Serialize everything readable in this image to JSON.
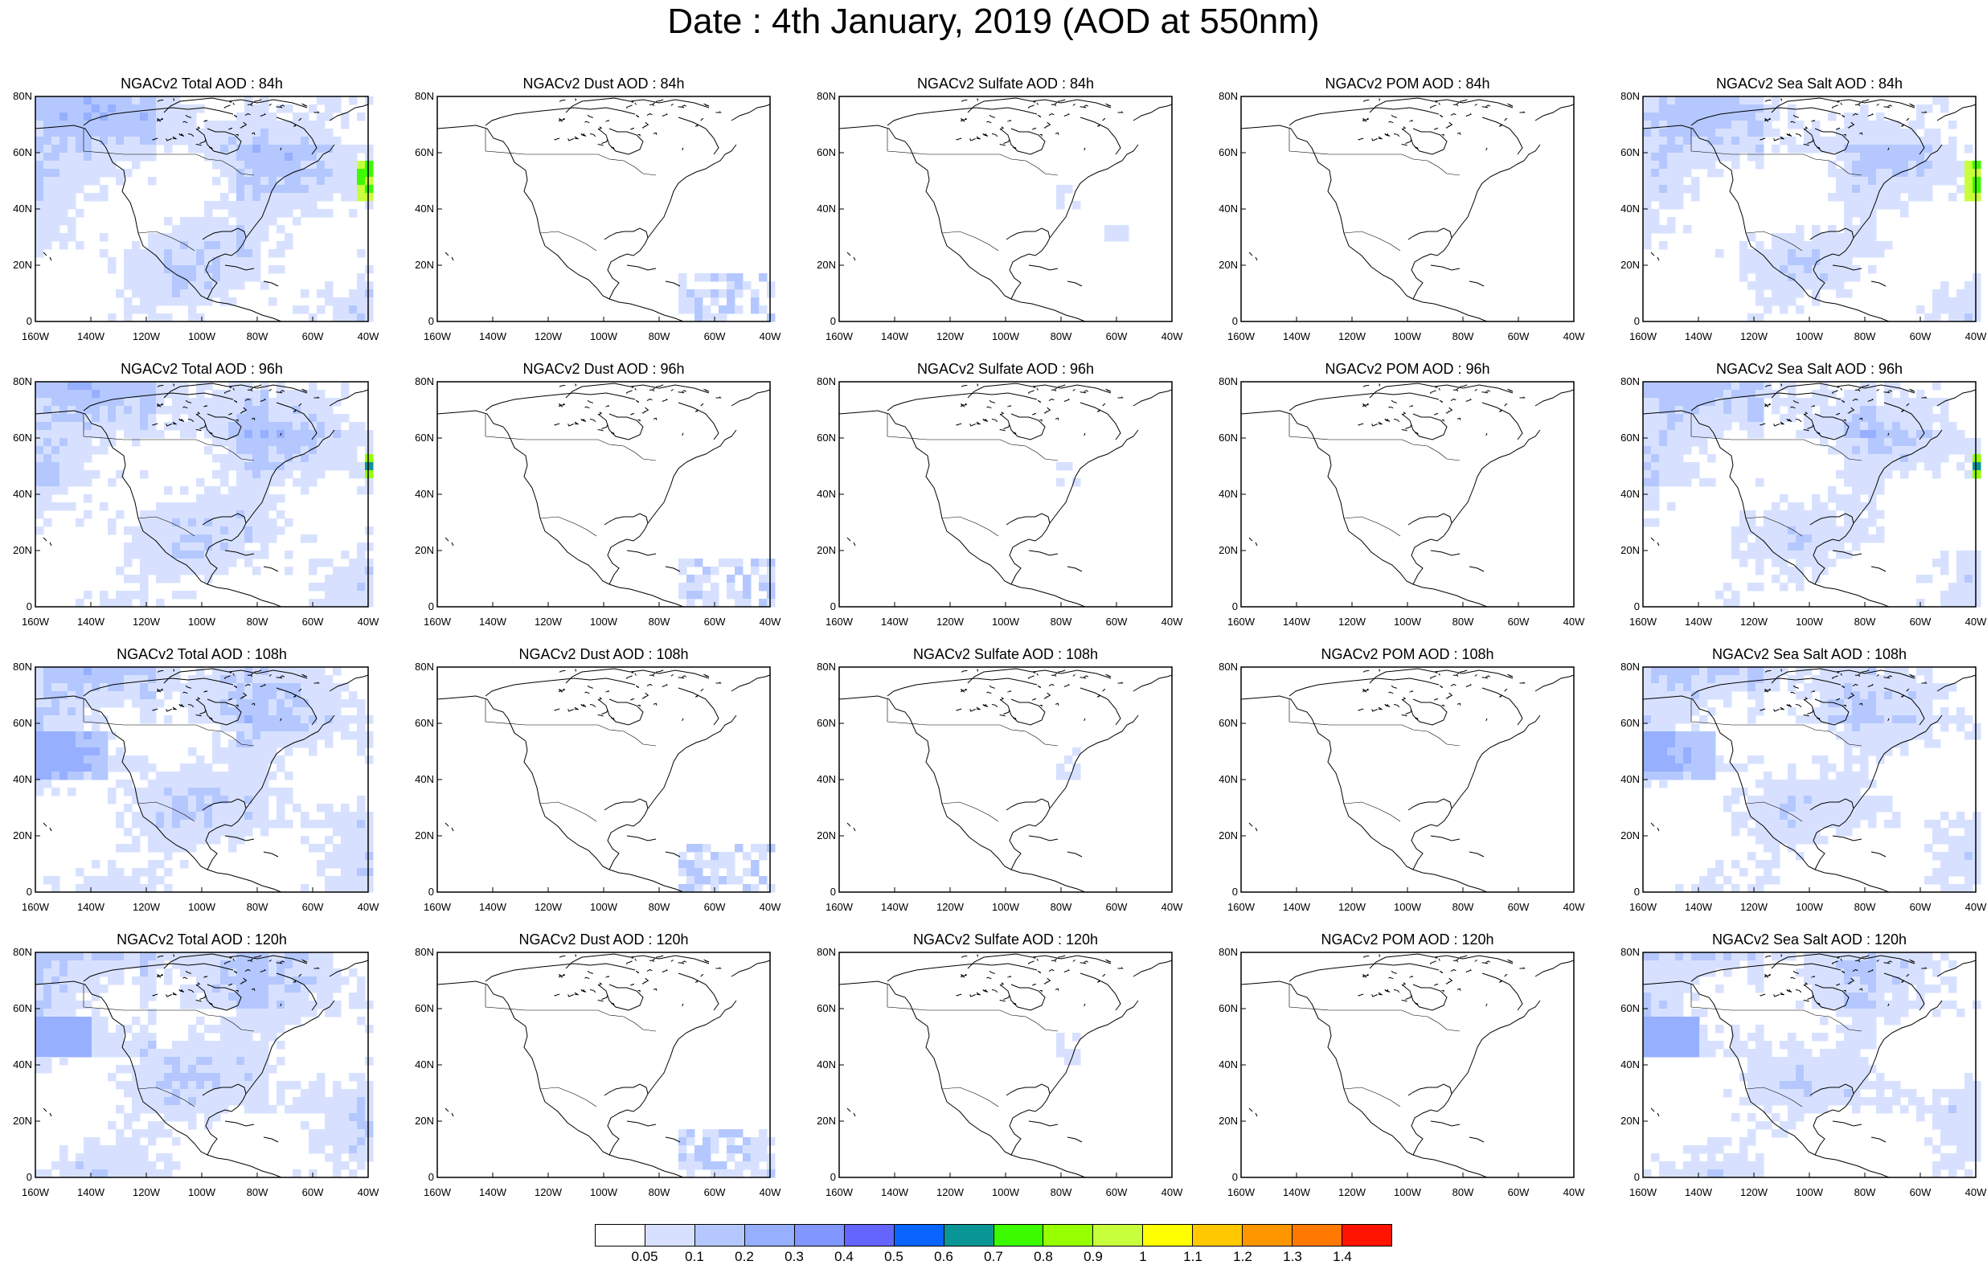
{
  "title": "Date : 4th January, 2019 (AOD at 550nm)",
  "columns": [
    {
      "key": "total",
      "labels": [
        "NGACv2 Total AOD : 84h",
        "NGACv2 Total AOD : 96h",
        "NGACv2 Total AOD : 108h",
        "NGACv2 Total AOD : 120h"
      ]
    },
    {
      "key": "dust",
      "labels": [
        "NGACv2 Dust AOD : 84h",
        "NGACv2 Dust AOD : 96h",
        "NGACv2 Dust AOD : 108h",
        "NGACv2 Dust AOD : 120h"
      ]
    },
    {
      "key": "sulfate",
      "labels": [
        "NGACv2 Sulfate AOD : 84h",
        "NGACv2 Sulfate AOD : 96h",
        "NGACv2 Sulfate AOD : 108h",
        "NGACv2 Sulfate AOD : 120h"
      ]
    },
    {
      "key": "pom",
      "labels": [
        "NGACv2 POM AOD : 84h",
        "NGACv2 POM AOD : 96h",
        "NGACv2 POM AOD : 108h",
        "NGACv2 POM AOD : 120h"
      ]
    },
    {
      "key": "seasalt",
      "labels": [
        "NGACv2 Sea Salt AOD : 84h",
        "NGACv2 Sea Salt AOD : 96h",
        "NGACv2 Sea Salt AOD : 108h",
        "NGACv2 Sea Salt  AOD : 120h"
      ]
    }
  ],
  "lat_ticks": [
    "80N",
    "60N",
    "40N",
    "20N",
    "0"
  ],
  "lon_ticks": [
    "160W",
    "140W",
    "120W",
    "100W",
    "80W",
    "60W",
    "40W"
  ],
  "colorbar": {
    "colors": [
      "#ffffff",
      "#d7e1ff",
      "#b4c8ff",
      "#96afff",
      "#8296ff",
      "#6464ff",
      "#0a64ff",
      "#0a9696",
      "#3cfa00",
      "#96ff00",
      "#c8ff3c",
      "#ffff00",
      "#ffc800",
      "#ff9600",
      "#ff7800",
      "#ff1400"
    ],
    "labels": [
      "0.05",
      "0.1",
      "0.2",
      "0.3",
      "0.4",
      "0.5",
      "0.6",
      "0.7",
      "0.8",
      "0.9",
      "1",
      "1.1",
      "1.2",
      "1.3",
      "1.4"
    ]
  }
}
